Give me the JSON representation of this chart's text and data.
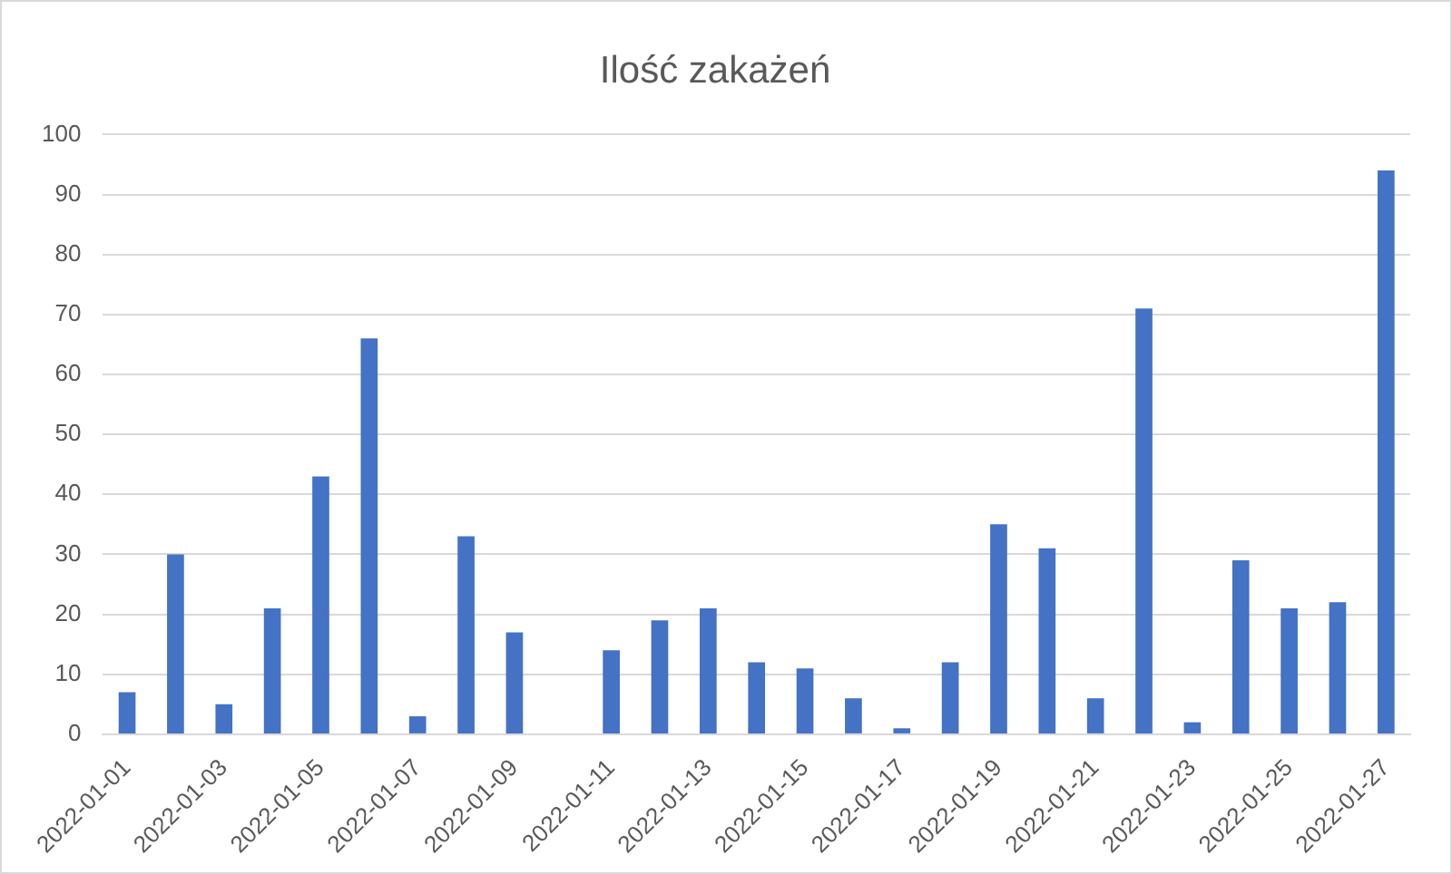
{
  "chart_data": {
    "type": "bar",
    "title": "Ilość zakażeń",
    "categories": [
      "2022-01-01",
      null,
      "2022-01-03",
      null,
      "2022-01-05",
      null,
      "2022-01-07",
      null,
      "2022-01-09",
      null,
      "2022-01-11",
      null,
      "2022-01-13",
      null,
      "2022-01-15",
      null,
      "2022-01-17",
      null,
      "2022-01-19",
      null,
      "2022-01-21",
      null,
      "2022-01-23",
      null,
      "2022-01-25",
      null,
      "2022-01-27"
    ],
    "values": [
      7,
      30,
      5,
      21,
      43,
      66,
      3,
      33,
      17,
      0,
      14,
      19,
      21,
      12,
      11,
      6,
      1,
      12,
      35,
      31,
      6,
      71,
      2,
      29,
      21,
      22,
      94
    ],
    "color": "#4472c4",
    "ylim": [
      0,
      100
    ],
    "yticks": [
      0,
      10,
      20,
      30,
      40,
      50,
      60,
      70,
      80,
      90,
      100
    ],
    "grid": "y"
  }
}
